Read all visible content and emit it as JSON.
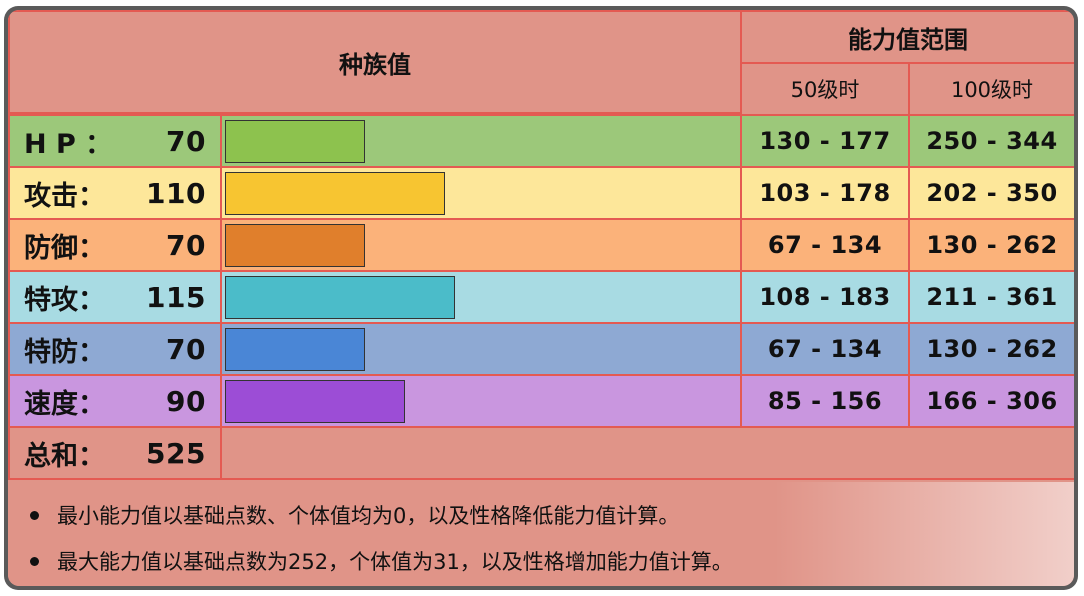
{
  "header": {
    "base_stats": "种族值",
    "stat_range": "能力值范围",
    "level50": "50级时",
    "level100": "100级时"
  },
  "stats": [
    {
      "label": "H P ：",
      "value": "70",
      "base": 70,
      "lv50": "130 - 177",
      "lv100": "250 - 344",
      "row_color": "#9cc87a",
      "label_color": "#9cc87a",
      "bar_color": "#8dc24e"
    },
    {
      "label": "攻击：",
      "value": "110",
      "base": 110,
      "lv50": "103 - 178",
      "lv100": "202 - 350",
      "row_color": "#fde79a",
      "label_color": "#fde79a",
      "bar_color": "#f7c531"
    },
    {
      "label": "防御：",
      "value": "70",
      "base": 70,
      "lv50": "67 - 134",
      "lv100": "130 - 262",
      "row_color": "#fbb27a",
      "label_color": "#fbb27a",
      "bar_color": "#e07f2c"
    },
    {
      "label": "特攻：",
      "value": "115",
      "base": 115,
      "lv50": "108 - 183",
      "lv100": "211 - 361",
      "row_color": "#a8dbe3",
      "label_color": "#a8dbe3",
      "bar_color": "#4bbcc9"
    },
    {
      "label": "特防：",
      "value": "70",
      "base": 70,
      "lv50": "67 - 134",
      "lv100": "130 - 262",
      "row_color": "#8ea9d3",
      "label_color": "#8ea9d3",
      "bar_color": "#4a86d6"
    },
    {
      "label": "速度：",
      "value": "90",
      "base": 90,
      "lv50": "85 - 156",
      "lv100": "166 - 306",
      "row_color": "#c996df",
      "label_color": "#c996df",
      "bar_color": "#9c4dd6"
    }
  ],
  "total": {
    "label": "总和：",
    "value": "525"
  },
  "notes": [
    "最小能力值以基础点数、个体值均为0，以及性格降低能力值计算。",
    "最大能力值以基础点数为252，个体值为31，以及性格增加能力值计算。"
  ]
}
